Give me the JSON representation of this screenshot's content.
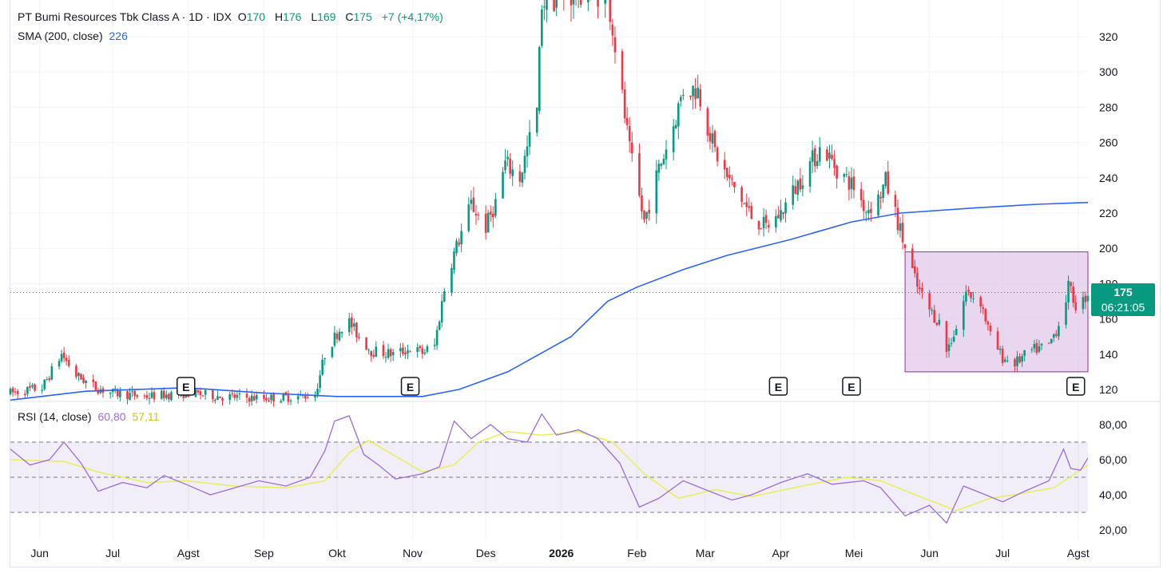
{
  "header": {
    "symbol_name": "PT Bumi Resources Tbk Class A · 1D · IDX",
    "o_label": "O",
    "o_value": "170",
    "h_label": "H",
    "h_value": "176",
    "l_label": "L",
    "l_value": "169",
    "c_label": "C",
    "c_value": "175",
    "change": "+7 (+4,17%)"
  },
  "sma_legend": {
    "label": "SMA (200, close)",
    "value": "226"
  },
  "rsi_legend": {
    "label": "RSI (14, close)",
    "value": "60,80",
    "ma_value": "57,11"
  },
  "last_price": {
    "price": "175",
    "countdown": "06:21:05"
  },
  "colors": {
    "up": "#089981",
    "down": "#f23645",
    "sma": "#2962ff",
    "rsi": "#9c6ade",
    "rsi_ma": "#e8ee55",
    "box_fill": "#e1c8ea",
    "box_border": "#9c27b0"
  },
  "chart_data": [
    {
      "type": "candlestick",
      "title": "PT Bumi Resources Tbk Class A · 1D · IDX",
      "ylim": [
        112,
        340
      ],
      "y_ticks": [
        "120",
        "140",
        "160",
        "180",
        "200",
        "220",
        "240",
        "260",
        "280",
        "300",
        "320"
      ],
      "x_ticks": [
        "Jun",
        "Jul",
        "Agst",
        "Sep",
        "Okt",
        "Nov",
        "Des",
        "2026",
        "Feb",
        "Mar",
        "Apr",
        "Mei",
        "Jun",
        "Jul",
        "Agst"
      ],
      "date_range": [
        "2025-05-20",
        "2026-08-05"
      ],
      "earnings_markers": [
        "2025-07-31",
        "2025-10-31",
        "2026-03-31",
        "2026-04-30",
        "2026-07-31"
      ],
      "earnings_label": "E",
      "price_levels": [
        [
          "2025-05-20",
          118
        ],
        [
          "2025-06-02",
          121
        ],
        [
          "2025-06-10",
          140
        ],
        [
          "2025-06-16",
          128
        ],
        [
          "2025-06-24",
          121
        ],
        [
          "2025-07-01",
          118
        ],
        [
          "2025-07-15",
          116
        ],
        [
          "2025-07-31",
          118
        ],
        [
          "2025-08-15",
          116
        ],
        [
          "2025-09-01",
          115
        ],
        [
          "2025-09-15",
          116
        ],
        [
          "2025-09-22",
          117
        ],
        [
          "2025-09-26",
          140
        ],
        [
          "2025-10-01",
          152
        ],
        [
          "2025-10-05",
          160
        ],
        [
          "2025-10-10",
          150
        ],
        [
          "2025-10-15",
          142
        ],
        [
          "2025-10-24",
          140
        ],
        [
          "2025-10-31",
          143
        ],
        [
          "2025-11-05",
          141
        ],
        [
          "2025-11-10",
          145
        ],
        [
          "2025-11-15",
          185
        ],
        [
          "2025-11-25",
          225
        ],
        [
          "2025-12-01",
          212
        ],
        [
          "2025-12-05",
          226
        ],
        [
          "2025-12-09",
          248
        ],
        [
          "2025-12-15",
          240
        ],
        [
          "2025-12-22",
          278
        ],
        [
          "2025-12-24",
          340
        ],
        [
          "2026-01-10",
          345
        ],
        [
          "2026-01-20",
          345
        ],
        [
          "2026-01-29",
          255
        ],
        [
          "2026-02-04",
          215
        ],
        [
          "2026-02-10",
          245
        ],
        [
          "2026-02-15",
          265
        ],
        [
          "2026-02-20",
          290
        ],
        [
          "2026-02-26",
          290
        ],
        [
          "2026-03-05",
          255
        ],
        [
          "2026-03-10",
          240
        ],
        [
          "2026-03-15",
          230
        ],
        [
          "2026-03-20",
          218
        ],
        [
          "2026-03-26",
          212
        ],
        [
          "2026-04-01",
          220
        ],
        [
          "2026-04-06",
          232
        ],
        [
          "2026-04-13",
          248
        ],
        [
          "2026-04-18",
          258
        ],
        [
          "2026-04-24",
          245
        ],
        [
          "2026-05-01",
          235
        ],
        [
          "2026-05-06",
          222
        ],
        [
          "2026-05-11",
          228
        ],
        [
          "2026-05-14",
          238
        ],
        [
          "2026-05-18",
          220
        ],
        [
          "2026-05-22",
          200
        ],
        [
          "2026-05-27",
          178
        ],
        [
          "2026-06-01",
          165
        ],
        [
          "2026-06-05",
          158
        ],
        [
          "2026-06-08",
          142
        ],
        [
          "2026-06-12",
          155
        ],
        [
          "2026-06-16",
          175
        ],
        [
          "2026-06-22",
          170
        ],
        [
          "2026-06-26",
          150
        ],
        [
          "2026-07-01",
          138
        ],
        [
          "2026-07-06",
          135
        ],
        [
          "2026-07-13",
          142
        ],
        [
          "2026-07-20",
          145
        ],
        [
          "2026-07-25",
          160
        ],
        [
          "2026-07-28",
          178
        ],
        [
          "2026-08-01",
          165
        ],
        [
          "2026-08-05",
          175
        ]
      ],
      "sma200": [
        [
          "2025-05-20",
          114
        ],
        [
          "2025-06-20",
          119
        ],
        [
          "2025-07-31",
          121
        ],
        [
          "2025-09-01",
          118
        ],
        [
          "2025-10-01",
          116
        ],
        [
          "2025-11-05",
          116
        ],
        [
          "2025-11-20",
          120
        ],
        [
          "2025-12-10",
          130
        ],
        [
          "2026-01-05",
          150
        ],
        [
          "2026-01-20",
          170
        ],
        [
          "2026-02-01",
          178
        ],
        [
          "2026-02-20",
          188
        ],
        [
          "2026-03-10",
          196
        ],
        [
          "2026-04-05",
          205
        ],
        [
          "2026-04-30",
          215
        ],
        [
          "2026-05-20",
          220
        ],
        [
          "2026-06-20",
          223
        ],
        [
          "2026-07-15",
          225
        ],
        [
          "2026-08-05",
          226
        ]
      ],
      "last_price": 175,
      "annotation_box": {
        "date_from": "2026-05-22",
        "date_to": "2026-08-05",
        "price_from": 130,
        "price_to": 198
      }
    },
    {
      "type": "line",
      "title": "RSI (14, close)",
      "ylim": [
        15,
        90
      ],
      "y_ticks": [
        "20,00",
        "40,00",
        "60,00",
        "80,00"
      ],
      "bands": [
        30,
        50,
        70
      ],
      "series": [
        {
          "name": "RSI",
          "points": [
            [
              "2025-05-20",
              66
            ],
            [
              "2025-05-28",
              57
            ],
            [
              "2025-06-05",
              60
            ],
            [
              "2025-06-11",
              70
            ],
            [
              "2025-06-18",
              58
            ],
            [
              "2025-06-25",
              42
            ],
            [
              "2025-07-05",
              47
            ],
            [
              "2025-07-15",
              44
            ],
            [
              "2025-07-22",
              51
            ],
            [
              "2025-07-31",
              46
            ],
            [
              "2025-08-10",
              40
            ],
            [
              "2025-08-20",
              44
            ],
            [
              "2025-08-30",
              48
            ],
            [
              "2025-09-10",
              45
            ],
            [
              "2025-09-20",
              50
            ],
            [
              "2025-09-26",
              65
            ],
            [
              "2025-09-30",
              82
            ],
            [
              "2025-10-06",
              85
            ],
            [
              "2025-10-12",
              63
            ],
            [
              "2025-10-18",
              57
            ],
            [
              "2025-10-25",
              49
            ],
            [
              "2025-11-05",
              52
            ],
            [
              "2025-11-12",
              56
            ],
            [
              "2025-11-18",
              82
            ],
            [
              "2025-11-25",
              72
            ],
            [
              "2025-12-03",
              80
            ],
            [
              "2025-12-10",
              72
            ],
            [
              "2025-12-18",
              70
            ],
            [
              "2025-12-24",
              86
            ],
            [
              "2025-12-30",
              74
            ],
            [
              "2026-01-08",
              77
            ],
            [
              "2026-01-16",
              72
            ],
            [
              "2026-01-25",
              58
            ],
            [
              "2026-02-02",
              33
            ],
            [
              "2026-02-10",
              38
            ],
            [
              "2026-02-20",
              48
            ],
            [
              "2026-03-01",
              43
            ],
            [
              "2026-03-12",
              37
            ],
            [
              "2026-03-20",
              40
            ],
            [
              "2026-04-01",
              47
            ],
            [
              "2026-04-12",
              52
            ],
            [
              "2026-04-22",
              46
            ],
            [
              "2026-05-05",
              48
            ],
            [
              "2026-05-12",
              44
            ],
            [
              "2026-05-22",
              28
            ],
            [
              "2026-06-01",
              34
            ],
            [
              "2026-06-08",
              24
            ],
            [
              "2026-06-15",
              45
            ],
            [
              "2026-06-24",
              40
            ],
            [
              "2026-07-01",
              36
            ],
            [
              "2026-07-10",
              42
            ],
            [
              "2026-07-20",
              48
            ],
            [
              "2026-07-26",
              66
            ],
            [
              "2026-07-29",
              55
            ],
            [
              "2026-08-02",
              54
            ],
            [
              "2026-08-05",
              61
            ]
          ]
        },
        {
          "name": "RSI-based MA",
          "points": [
            [
              "2025-05-20",
              60
            ],
            [
              "2025-06-11",
              59
            ],
            [
              "2025-06-25",
              53
            ],
            [
              "2025-07-15",
              47
            ],
            [
              "2025-07-31",
              48
            ],
            [
              "2025-08-20",
              45
            ],
            [
              "2025-09-10",
              44
            ],
            [
              "2025-09-26",
              48
            ],
            [
              "2025-10-06",
              64
            ],
            [
              "2025-10-14",
              71
            ],
            [
              "2025-10-25",
              62
            ],
            [
              "2025-11-05",
              53
            ],
            [
              "2025-11-18",
              57
            ],
            [
              "2025-11-28",
              70
            ],
            [
              "2025-12-10",
              76
            ],
            [
              "2025-12-24",
              74
            ],
            [
              "2026-01-08",
              76
            ],
            [
              "2026-01-22",
              70
            ],
            [
              "2026-02-04",
              52
            ],
            [
              "2026-02-18",
              38
            ],
            [
              "2026-03-05",
              43
            ],
            [
              "2026-03-20",
              39
            ],
            [
              "2026-04-10",
              45
            ],
            [
              "2026-04-28",
              50
            ],
            [
              "2026-05-12",
              48
            ],
            [
              "2026-05-28",
              39
            ],
            [
              "2026-06-12",
              31
            ],
            [
              "2026-06-26",
              38
            ],
            [
              "2026-07-10",
              41
            ],
            [
              "2026-07-22",
              44
            ],
            [
              "2026-08-05",
              57
            ]
          ]
        }
      ]
    }
  ]
}
